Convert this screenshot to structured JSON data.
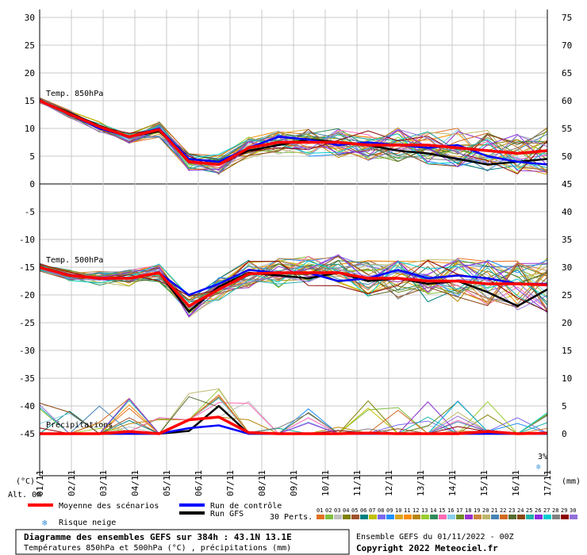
{
  "chart_data": {
    "type": "line",
    "title": "Diagramme des ensembles GEFS sur 384h : 43.1N 13.1E",
    "subtitle": "Températures 850hPa et 500hPa (°C) , précipitations (mm)",
    "left_axis": {
      "unit": "(°C)",
      "ticks": [
        30,
        25,
        20,
        15,
        10,
        5,
        0,
        -5,
        -10,
        -15,
        -20,
        -25,
        -30,
        -35,
        -40,
        -45
      ],
      "range": [
        -45,
        30
      ]
    },
    "right_axis": {
      "unit": "(mm)",
      "ticks": [
        75,
        70,
        65,
        60,
        55,
        50,
        45,
        40,
        35,
        30,
        25,
        20,
        15,
        10,
        5,
        0
      ],
      "range": [
        0,
        75
      ]
    },
    "x_ticks": [
      "01/11",
      "02/11",
      "03/11",
      "04/11",
      "05/11",
      "06/11",
      "07/11",
      "08/11",
      "09/11",
      "10/11",
      "11/11",
      "12/11",
      "13/11",
      "14/11",
      "15/11",
      "16/11",
      "17/11"
    ],
    "alt_label": "Alt. 0m",
    "panel_labels": {
      "t850": "Temp. 850hPa",
      "t500": "Temp. 500hPa",
      "precip": "Précipitations"
    },
    "snow_risk_badge": "3%",
    "series": [
      {
        "name": "Moyenne des scénarios",
        "role": "mean",
        "color": "#ff0000",
        "t850": [
          15,
          12.6,
          10.3,
          8.5,
          9.8,
          4,
          3.5,
          6.5,
          7.5,
          7.5,
          7.5,
          7,
          7,
          7,
          6.5,
          6,
          5.5,
          6
        ],
        "t500": [
          -15,
          -16.5,
          -17,
          -17,
          -16,
          -22,
          -19,
          -16.2,
          -16,
          -16,
          -16,
          -17,
          -17,
          -17.5,
          -17.5,
          -18,
          -18,
          -18.2
        ],
        "precip": [
          0,
          0,
          0,
          0.4,
          0,
          2.5,
          3,
          0.2,
          0,
          0,
          0,
          0.1,
          0,
          0,
          0,
          0.4,
          0,
          0.1
        ]
      },
      {
        "name": "Run de contrôle",
        "role": "control",
        "color": "#0000ff",
        "t850": [
          15,
          12.5,
          10,
          8.5,
          10,
          4.5,
          4,
          6.5,
          8.5,
          8,
          7,
          7.5,
          7,
          6.5,
          7,
          5,
          4,
          3.5
        ],
        "t500": [
          -15,
          -16.5,
          -17,
          -17,
          -16,
          -20,
          -18,
          -15.5,
          -16,
          -16,
          -17.5,
          -17,
          -15.5,
          -17,
          -16.5,
          -17,
          -18,
          -18
        ],
        "precip": [
          0,
          0,
          0,
          0,
          0,
          1,
          1.5,
          0,
          0,
          0,
          0,
          0,
          0,
          0,
          0,
          0,
          0,
          0
        ]
      },
      {
        "name": "Run GFS",
        "role": "gfs",
        "color": "#000000",
        "t850": [
          15,
          12.8,
          10.5,
          8.5,
          9.5,
          4.5,
          4,
          6,
          7,
          8,
          7.5,
          7,
          6,
          5.5,
          4.5,
          3.5,
          4,
          4.5
        ],
        "t500": [
          -15,
          -16.5,
          -17,
          -17,
          -16,
          -23,
          -18.5,
          -16,
          -16.5,
          -17,
          -16,
          -17.5,
          -17,
          -18,
          -17.5,
          -19.5,
          -22,
          -19
        ],
        "precip": [
          0,
          0,
          0,
          0,
          0,
          0.5,
          5,
          0,
          0,
          0,
          0,
          0,
          0,
          0,
          0,
          0,
          0,
          0
        ]
      }
    ]
  },
  "legend": {
    "mean": "Moyenne des scénarios",
    "control": "Run de contrôle",
    "gfs": "Run GFS",
    "snow": "Risque neige",
    "perts_label": "30 Perts.",
    "pert_numbers": [
      "01",
      "02",
      "03",
      "04",
      "05",
      "06",
      "07",
      "08",
      "09",
      "10",
      "11",
      "12",
      "13",
      "14",
      "15",
      "16",
      "17",
      "18",
      "19",
      "20",
      "21",
      "22",
      "23",
      "24",
      "25",
      "26",
      "27",
      "28",
      "29",
      "30"
    ],
    "pert_colors": [
      "#e07020",
      "#7fbf3f",
      "#bfbfbf",
      "#808000",
      "#a0522d",
      "#008080",
      "#c0c000",
      "#7b68ee",
      "#1e90ff",
      "#daa520",
      "#ff8c00",
      "#b8860b",
      "#9acd32",
      "#2e8b57",
      "#ff69b4",
      "#87ceeb",
      "#6b8e23",
      "#9932cc",
      "#cd853f",
      "#bdb76b",
      "#4682b4",
      "#d2691e",
      "#556b2f",
      "#8b4513",
      "#20b2aa",
      "#8a2be2",
      "#00ced1",
      "#808080",
      "#8b0000",
      "#9370db"
    ]
  },
  "footer": {
    "title": "Diagramme des ensembles GEFS sur 384h : 43.1N 13.1E",
    "subtitle": "Températures 850hPa et 500hPa (°C) , précipitations (mm)",
    "run": "Ensemble GEFS du 01/11/2022 - 00Z",
    "copyright": "Copyright 2022 Meteociel.fr"
  }
}
